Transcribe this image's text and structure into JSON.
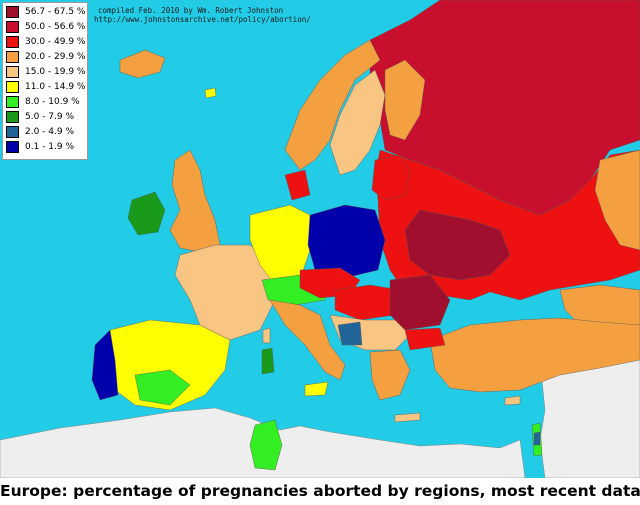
{
  "caption": "Europe:  percentage of pregnancies aborted by regions, most recent data",
  "credit_line1": "compiled Feb. 2010 by Wm. Robert Johnston",
  "credit_line2": "http://www.johnstonsarchive.net/policy/abortion/",
  "legend": [
    {
      "label": "56.7 - 67.5 %",
      "color": "#a0102e"
    },
    {
      "label": "50.0 - 56.6 %",
      "color": "#c8102e"
    },
    {
      "label": "30.0 - 49.9 %",
      "color": "#ee1111"
    },
    {
      "label": "20.0 - 29.9 %",
      "color": "#f4a040"
    },
    {
      "label": "15.0 - 19.9 %",
      "color": "#f9c583"
    },
    {
      "label": "11.0 - 14.9 %",
      "color": "#ffff00"
    },
    {
      "label": "8.0 - 10.9 %",
      "color": "#33ee22"
    },
    {
      "label": "5.0 -  7.9 %",
      "color": "#1a9a1a"
    },
    {
      "label": "2.0 -  4.9 %",
      "color": "#226699"
    },
    {
      "label": "0.1 -  1.9 %",
      "color": "#0000aa"
    }
  ],
  "colors": {
    "sea": "#22cce6",
    "non_europe_land": "#eeeeee",
    "border": "#555555"
  }
}
